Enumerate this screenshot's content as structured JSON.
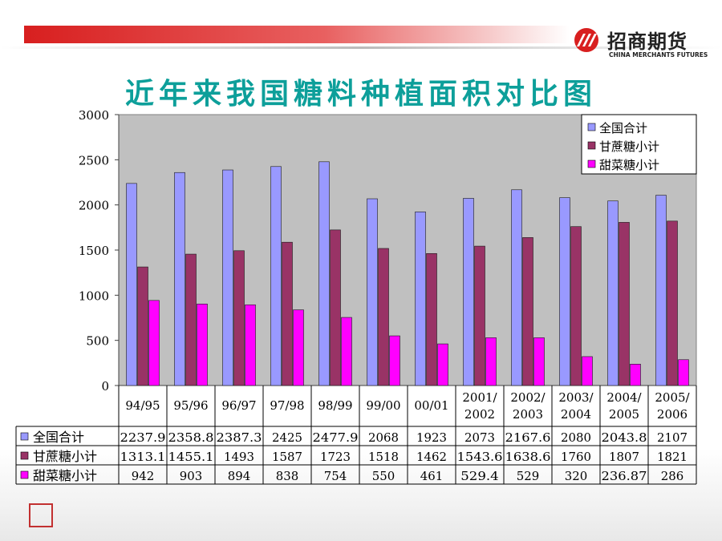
{
  "title": "近年来我国糖料种植面积对比图",
  "logo": {
    "name": "招商期货",
    "subtitle": "CHINA MERCHANTS FUTURES"
  },
  "colors": {
    "title": "#0d9f9a",
    "header_red": "#d81f1f"
  },
  "chart_data": {
    "type": "bar",
    "title": "近年来我国糖料种植面积对比图",
    "categories": [
      "94/95",
      "95/96",
      "96/97",
      "97/98",
      "98/99",
      "99/00",
      "00/01",
      "2001/2002",
      "2002/2003",
      "2003/2004",
      "2004/2005",
      "2005/2006"
    ],
    "category_lines": [
      [
        "94/95"
      ],
      [
        "95/96"
      ],
      [
        "96/97"
      ],
      [
        "97/98"
      ],
      [
        "98/99"
      ],
      [
        "99/00"
      ],
      [
        "00/01"
      ],
      [
        "2001/",
        "2002"
      ],
      [
        "2002/",
        "2003"
      ],
      [
        "2003/",
        "2004"
      ],
      [
        "2004/",
        "2005"
      ],
      [
        "2005/",
        "2006"
      ]
    ],
    "series": [
      {
        "name": "全国合计",
        "color": "#9999ff",
        "values": [
          2237.9,
          2358.8,
          2387.3,
          2425,
          2477.9,
          2068,
          1923,
          2073,
          2167.6,
          2080,
          2043.8,
          2107
        ],
        "labels": [
          "2237.9",
          "2358.8",
          "2387.3",
          "2425",
          "2477.9",
          "2068",
          "1923",
          "2073",
          "2167.6",
          "2080",
          "2043.8",
          "2107"
        ]
      },
      {
        "name": "甘蔗糖小计",
        "color": "#993366",
        "values": [
          1313.1,
          1455.1,
          1493,
          1587,
          1723,
          1518,
          1462,
          1543.6,
          1638.6,
          1760,
          1807,
          1821
        ],
        "labels": [
          "1313.1",
          "1455.1",
          "1493",
          "1587",
          "1723",
          "1518",
          "1462",
          "1543.6",
          "1638.6",
          "1760",
          "1807",
          "1821"
        ]
      },
      {
        "name": "甜菜糖小计",
        "color": "#ff00ff",
        "values": [
          942,
          903,
          894,
          838,
          754,
          550,
          461,
          529.4,
          529,
          320,
          236.87,
          286
        ],
        "labels": [
          "942",
          "903",
          "894",
          "838",
          "754",
          "550",
          "461",
          "529.4",
          "529",
          "320",
          "236.87",
          "286"
        ]
      }
    ],
    "ylim": [
      0,
      3000
    ],
    "yticks": [
      0,
      500,
      1000,
      1500,
      2000,
      2500,
      3000
    ],
    "grid": false,
    "plot_background": "#c0c0c0",
    "legend_position": "top-right",
    "data_table": true
  }
}
